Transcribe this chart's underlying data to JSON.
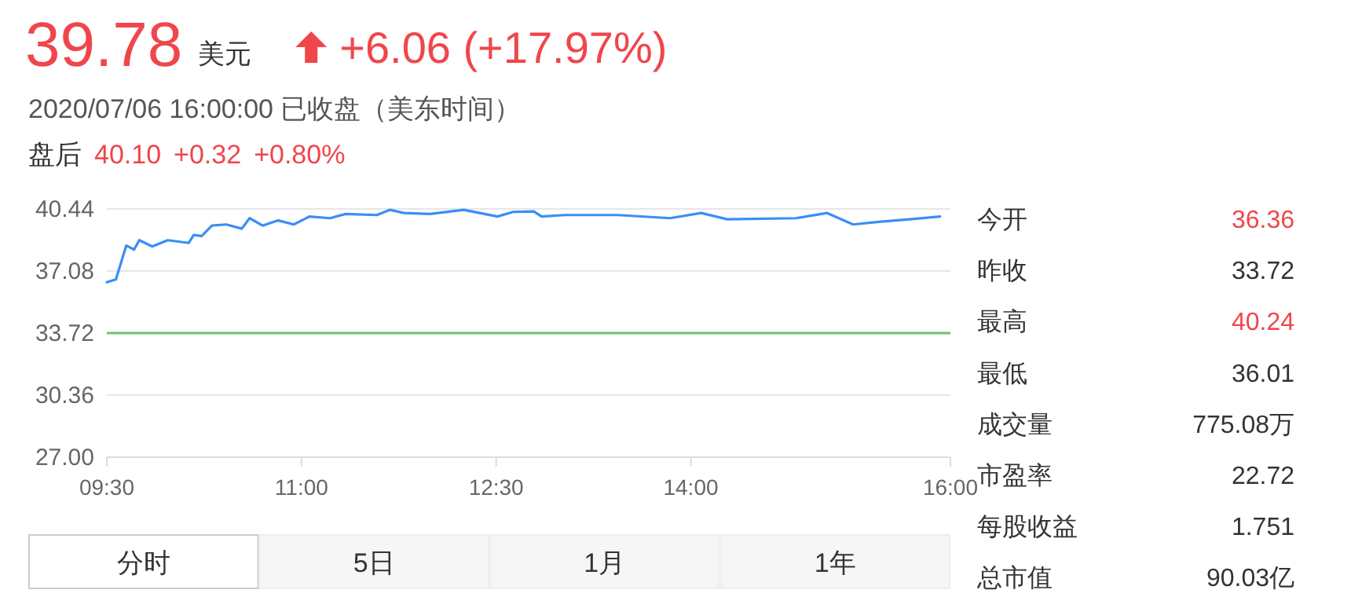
{
  "chart_data": [
    {
      "type": "line",
      "title": "39.78",
      "annotations": [
        "美元",
        "+6.06 (+17.97%)",
        "2020/07/06 16:00:00 已收盘（美东时间）",
        "盘后",
        "40.10",
        "+0.32",
        "+0.80%",
        "分时",
        "5日",
        "1月",
        "1年"
      ],
      "series": [
        {
          "color": "#3a8ef6",
          "x": [
            9.5,
            9.57,
            9.65,
            9.71,
            9.75,
            9.85,
            9.97,
            10.13,
            10.17,
            10.23,
            10.31,
            10.42,
            10.54,
            10.6,
            10.7,
            10.82,
            10.94,
            11.02,
            11.06,
            11.22,
            11.34,
            11.58,
            11.68,
            11.79,
            11.99,
            12.25,
            12.51,
            12.63,
            12.79,
            12.85,
            13.03,
            13.44,
            13.84,
            14.08,
            14.28,
            14.81,
            15.05,
            15.25,
            15.45,
            15.69,
            15.92
          ],
          "values": [
            36.47,
            36.62,
            38.46,
            38.24,
            38.75,
            38.41,
            38.75,
            38.6,
            39.03,
            38.97,
            39.54,
            39.6,
            39.37,
            39.94,
            39.54,
            39.82,
            39.6,
            39.88,
            40.03,
            39.94,
            40.17,
            40.11,
            40.39,
            40.22,
            40.17,
            40.39,
            40.03,
            40.28,
            40.31,
            40.03,
            40.11,
            40.11,
            39.94,
            40.22,
            39.88,
            39.94,
            40.22,
            39.6,
            39.74,
            39.88,
            40.03
          ]
        }
      ],
      "xlim": [
        9.5,
        16
      ],
      "ylim": [
        27,
        40.44
      ],
      "xticks": [
        {
          "value": 9.5,
          "label": "09:30"
        },
        {
          "value": 11,
          "label": "11:00"
        },
        {
          "value": 12.5,
          "label": "12:30"
        },
        {
          "value": 14,
          "label": "14:00"
        },
        {
          "value": 16,
          "label": "16:00"
        }
      ],
      "yticks": [
        {
          "value": 27,
          "label": "27.00"
        },
        {
          "value": 30.36,
          "label": "30.36"
        },
        {
          "value": 33.72,
          "label": "33.72"
        },
        {
          "value": 37.08,
          "label": "37.08"
        },
        {
          "value": 40.44,
          "label": "40.44"
        }
      ],
      "ref_lines": [
        {
          "axis": "y",
          "value": 33.72,
          "color": "#6cc46c"
        }
      ],
      "grid": "y",
      "marker": "none",
      "line_style": "solid"
    },
    {
      "type": "other",
      "annotations": [
        "今开",
        "36.36",
        "昨收",
        "33.72",
        "最高",
        "40.24",
        "最低",
        "36.01",
        "成交量",
        "775.08万",
        "市盈率",
        "22.72",
        "每股收益",
        "1.751",
        "总市值",
        "90.03亿"
      ]
    }
  ]
}
